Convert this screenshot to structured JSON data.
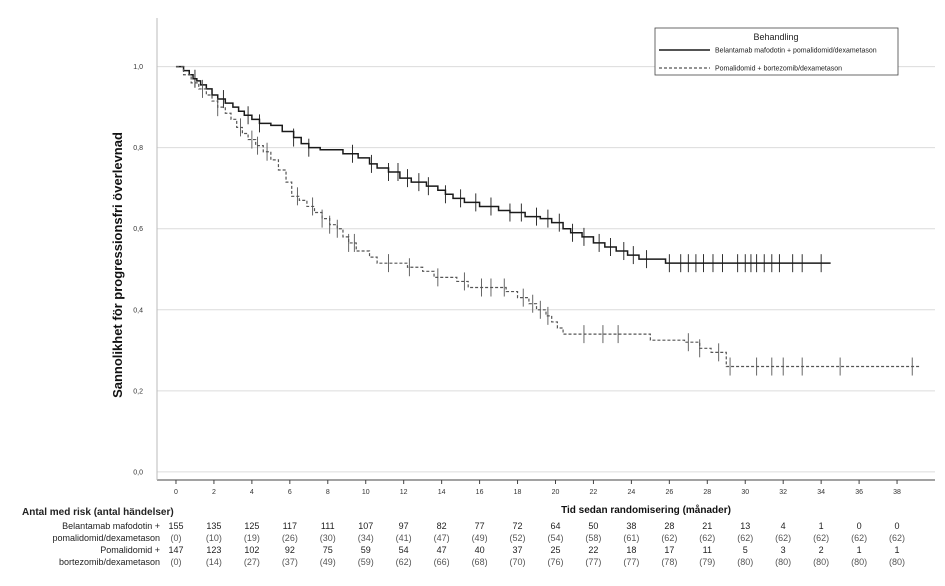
{
  "chart_data": {
    "type": "line",
    "ylabel": "Sannolikhet för progressionsfri överlevnad",
    "xlabel": "Tid sedan randomisering (månader)",
    "xlim": [
      -1,
      40
    ],
    "ylim": [
      -0.02,
      1.12
    ],
    "x_ticks": [
      0,
      2,
      4,
      6,
      8,
      10,
      12,
      14,
      16,
      18,
      20,
      22,
      24,
      26,
      28,
      30,
      32,
      34,
      36,
      38
    ],
    "x_tick_labels": [
      "0",
      "2",
      "4",
      "6",
      "8",
      "10",
      "12",
      "14",
      "16",
      "18",
      "20",
      "22",
      "24",
      "26",
      "28",
      "30",
      "32",
      "34",
      "36",
      "38"
    ],
    "y_ticks": [
      0,
      0.2,
      0.4,
      0.6,
      0.8,
      1.0
    ],
    "y_tick_labels": [
      "0,0",
      "0,2",
      "0,4",
      "0,6",
      "0,8",
      "1,0"
    ],
    "legend": {
      "title": "Behandling",
      "position": "top-right",
      "entries": [
        {
          "label": "Belantamab mafodotin + pomalidomid/dexametason",
          "style": "solid"
        },
        {
          "label": "Pomalidomid + bortezomib/dexametason",
          "style": "dashed"
        }
      ]
    },
    "series": [
      {
        "name": "Belantamab mafodotin + pomalidomid/dexametason",
        "style": "solid",
        "color": "#1a1a1a",
        "steps": [
          [
            0,
            1.0
          ],
          [
            0.4,
            0.99
          ],
          [
            0.7,
            0.98
          ],
          [
            0.9,
            0.97
          ],
          [
            1.1,
            0.965
          ],
          [
            1.3,
            0.955
          ],
          [
            1.6,
            0.945
          ],
          [
            1.9,
            0.93
          ],
          [
            2.2,
            0.92
          ],
          [
            2.6,
            0.91
          ],
          [
            3.0,
            0.9
          ],
          [
            3.3,
            0.89
          ],
          [
            3.6,
            0.88
          ],
          [
            4.0,
            0.87
          ],
          [
            4.4,
            0.86
          ],
          [
            5.0,
            0.855
          ],
          [
            5.6,
            0.84
          ],
          [
            6.2,
            0.825
          ],
          [
            6.6,
            0.81
          ],
          [
            7.0,
            0.8
          ],
          [
            7.6,
            0.795
          ],
          [
            8.8,
            0.785
          ],
          [
            9.6,
            0.775
          ],
          [
            10.2,
            0.76
          ],
          [
            10.6,
            0.75
          ],
          [
            11.2,
            0.74
          ],
          [
            11.8,
            0.725
          ],
          [
            12.4,
            0.715
          ],
          [
            13.2,
            0.705
          ],
          [
            13.8,
            0.695
          ],
          [
            14.2,
            0.685
          ],
          [
            14.6,
            0.675
          ],
          [
            15.2,
            0.665
          ],
          [
            16.0,
            0.655
          ],
          [
            17.0,
            0.645
          ],
          [
            17.6,
            0.64
          ],
          [
            18.4,
            0.63
          ],
          [
            19.2,
            0.625
          ],
          [
            19.8,
            0.615
          ],
          [
            20.4,
            0.6
          ],
          [
            20.8,
            0.59
          ],
          [
            21.4,
            0.58
          ],
          [
            22.0,
            0.565
          ],
          [
            22.6,
            0.555
          ],
          [
            23.2,
            0.545
          ],
          [
            23.8,
            0.535
          ],
          [
            24.4,
            0.525
          ],
          [
            25.8,
            0.515
          ],
          [
            34.5,
            0.515
          ]
        ],
        "censor": [
          1.0,
          2.5,
          3.8,
          4.4,
          6.2,
          7.0,
          9.3,
          10.3,
          11.2,
          11.7,
          12.2,
          12.8,
          13.3,
          14.2,
          15.0,
          15.8,
          16.6,
          17.6,
          18.2,
          19.0,
          19.6,
          20.2,
          20.9,
          21.5,
          22.3,
          22.9,
          23.6,
          24.1,
          24.8,
          26.0,
          26.6,
          27.0,
          27.4,
          27.8,
          28.3,
          28.8,
          29.6,
          30.0,
          30.3,
          30.6,
          31.0,
          31.4,
          31.8,
          32.5,
          33.0,
          34.0
        ]
      },
      {
        "name": "Pomalidomid + bortezomib/dexametason",
        "style": "dashed",
        "color": "#555555",
        "steps": [
          [
            0,
            1.0
          ],
          [
            0.4,
            0.98
          ],
          [
            0.8,
            0.96
          ],
          [
            1.2,
            0.945
          ],
          [
            1.6,
            0.93
          ],
          [
            1.9,
            0.915
          ],
          [
            2.2,
            0.9
          ],
          [
            2.6,
            0.885
          ],
          [
            2.9,
            0.87
          ],
          [
            3.2,
            0.85
          ],
          [
            3.5,
            0.835
          ],
          [
            3.8,
            0.82
          ],
          [
            4.2,
            0.805
          ],
          [
            4.6,
            0.79
          ],
          [
            5.0,
            0.77
          ],
          [
            5.4,
            0.745
          ],
          [
            5.8,
            0.715
          ],
          [
            6.1,
            0.68
          ],
          [
            6.5,
            0.67
          ],
          [
            6.9,
            0.655
          ],
          [
            7.3,
            0.64
          ],
          [
            7.7,
            0.625
          ],
          [
            8.1,
            0.61
          ],
          [
            8.5,
            0.6
          ],
          [
            8.8,
            0.58
          ],
          [
            9.1,
            0.565
          ],
          [
            9.5,
            0.545
          ],
          [
            10.2,
            0.53
          ],
          [
            10.6,
            0.515
          ],
          [
            11.8,
            0.515
          ],
          [
            12.2,
            0.505
          ],
          [
            13.0,
            0.495
          ],
          [
            13.6,
            0.48
          ],
          [
            14.8,
            0.47
          ],
          [
            15.4,
            0.455
          ],
          [
            17.4,
            0.445
          ],
          [
            18.0,
            0.43
          ],
          [
            18.6,
            0.415
          ],
          [
            19.0,
            0.4
          ],
          [
            19.5,
            0.385
          ],
          [
            19.8,
            0.37
          ],
          [
            20.1,
            0.355
          ],
          [
            20.4,
            0.34
          ],
          [
            25.0,
            0.325
          ],
          [
            26.8,
            0.32
          ],
          [
            27.6,
            0.305
          ],
          [
            28.2,
            0.295
          ],
          [
            29.0,
            0.26
          ],
          [
            39.2,
            0.26
          ]
        ],
        "censor": [
          1.4,
          2.2,
          3.4,
          4.0,
          4.3,
          4.8,
          6.4,
          7.2,
          7.7,
          8.1,
          8.5,
          9.1,
          9.4,
          11.2,
          12.3,
          13.8,
          15.2,
          16.1,
          16.6,
          17.3,
          18.3,
          18.8,
          19.2,
          19.6,
          21.5,
          22.5,
          23.3,
          27.0,
          27.6,
          28.6,
          29.2,
          30.6,
          31.4,
          32.0,
          33.0,
          35.0,
          38.8
        ]
      }
    ]
  },
  "risk_table": {
    "title": "Antal med risk (antal händelser)",
    "times": [
      0,
      2,
      4,
      6,
      8,
      10,
      12,
      14,
      16,
      18,
      20,
      22,
      24,
      26,
      28,
      30,
      32,
      34,
      36,
      38
    ],
    "groups": [
      {
        "label_line1": "Belantamab mafodotin +",
        "label_line2": "pomalidomid/dexametason",
        "at_risk": [
          "155",
          "135",
          "125",
          "117",
          "111",
          "107",
          "97",
          "82",
          "77",
          "72",
          "64",
          "50",
          "38",
          "28",
          "21",
          "13",
          "4",
          "1",
          "0",
          "0"
        ],
        "events": [
          "(0)",
          "(10)",
          "(19)",
          "(26)",
          "(30)",
          "(34)",
          "(41)",
          "(47)",
          "(49)",
          "(52)",
          "(54)",
          "(58)",
          "(61)",
          "(62)",
          "(62)",
          "(62)",
          "(62)",
          "(62)",
          "(62)",
          "(62)"
        ]
      },
      {
        "label_line1": "Pomalidomid +",
        "label_line2": "bortezomib/dexametason",
        "at_risk": [
          "147",
          "123",
          "102",
          "92",
          "75",
          "59",
          "54",
          "47",
          "40",
          "37",
          "25",
          "22",
          "18",
          "17",
          "11",
          "5",
          "3",
          "2",
          "1",
          "1"
        ],
        "events": [
          "(0)",
          "(14)",
          "(27)",
          "(37)",
          "(49)",
          "(59)",
          "(62)",
          "(66)",
          "(68)",
          "(70)",
          "(76)",
          "(77)",
          "(77)",
          "(78)",
          "(79)",
          "(80)",
          "(80)",
          "(80)",
          "(80)",
          "(80)"
        ]
      }
    ]
  }
}
